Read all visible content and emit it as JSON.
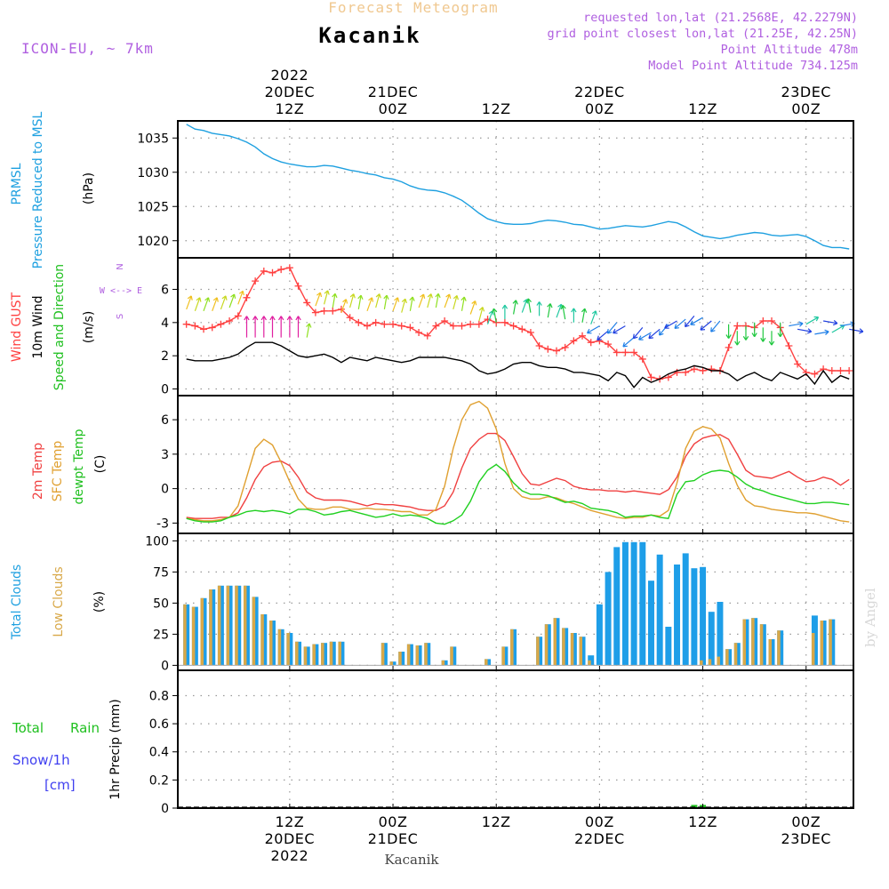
{
  "header": {
    "title": "Forecast Meteogram",
    "location": "Kacanik",
    "model": "ICON-EU, ~ 7km",
    "info_lines": [
      "requested lon,lat (21.2568E, 42.2279N)",
      "grid point closest lon,lat (21.25E, 42.25N)",
      "Point Altitude 478m",
      "Model Point Altitude 734.125m"
    ],
    "credit": "by Angel",
    "footer_location": "Kacanik"
  },
  "colors": {
    "title": "#f0c890",
    "info": "#b060e0",
    "pressure": "#1ea0e0",
    "gust": "#ff4040",
    "wind": "#000000",
    "wind_arrows": "#20c020",
    "temp2m": "#f04040",
    "sfc_temp": "#e0a030",
    "dewpoint": "#20d020",
    "total_clouds": "#1e9ee8",
    "low_clouds": "#d8a848",
    "rain": "#20c020",
    "snow": "#4040f0",
    "grid": "#999999"
  },
  "time_axis": {
    "top_labels": [
      {
        "t": 12,
        "lines": [
          "2022",
          "20DEC",
          "12Z"
        ]
      },
      {
        "t": 24,
        "lines": [
          "21DEC",
          "00Z"
        ]
      },
      {
        "t": 36,
        "lines": [
          "12Z"
        ]
      },
      {
        "t": 48,
        "lines": [
          "22DEC",
          "00Z"
        ]
      },
      {
        "t": 60,
        "lines": [
          "12Z"
        ]
      },
      {
        "t": 72,
        "lines": [
          "23DEC",
          "00Z"
        ]
      }
    ],
    "bottom_labels": [
      {
        "t": 12,
        "lines": [
          "12Z",
          "20DEC",
          "2022"
        ]
      },
      {
        "t": 24,
        "lines": [
          "00Z",
          "21DEC"
        ]
      },
      {
        "t": 36,
        "lines": [
          "12Z"
        ]
      },
      {
        "t": 48,
        "lines": [
          "00Z",
          "22DEC"
        ]
      },
      {
        "t": 60,
        "lines": [
          "12Z"
        ]
      },
      {
        "t": 72,
        "lines": [
          "00Z",
          "23DEC"
        ]
      }
    ]
  },
  "chart_data": [
    {
      "type": "line",
      "panel": "pressure",
      "ylabels": [
        "PRMSL",
        "Pressure Reduced to MSL",
        "(hPa)"
      ],
      "yticks": [
        1020,
        1025,
        1030,
        1035
      ],
      "ylim": [
        1017.5,
        1037.5
      ],
      "x_hours": [
        0,
        1,
        2,
        3,
        4,
        5,
        6,
        7,
        8,
        9,
        10,
        11,
        12,
        13,
        14,
        15,
        16,
        17,
        18,
        19,
        20,
        21,
        22,
        23,
        24,
        25,
        26,
        27,
        28,
        29,
        30,
        31,
        32,
        33,
        34,
        35,
        36,
        37,
        38,
        39,
        40,
        41,
        42,
        43,
        44,
        45,
        46,
        47,
        48,
        49,
        50,
        51,
        52,
        53,
        54,
        55,
        56,
        57,
        58,
        59,
        60,
        61,
        62,
        63,
        64,
        65,
        66,
        67,
        68,
        69,
        70,
        71,
        72,
        73,
        74,
        75,
        76,
        77
      ],
      "series": [
        {
          "values": [
            1037,
            1036.3,
            1036.1,
            1035.7,
            1035.5,
            1035.3,
            1034.9,
            1034.4,
            1033.7,
            1032.7,
            1032.0,
            1031.5,
            1031.2,
            1031.0,
            1030.8,
            1030.8,
            1031.0,
            1030.9,
            1030.6,
            1030.3,
            1030.1,
            1029.8,
            1029.6,
            1029.2,
            1029.0,
            1028.6,
            1028.0,
            1027.6,
            1027.4,
            1027.3,
            1027.0,
            1026.5,
            1025.9,
            1025.0,
            1024.0,
            1023.2,
            1022.8,
            1022.5,
            1022.4,
            1022.4,
            1022.5,
            1022.8,
            1023.0,
            1022.9,
            1022.7,
            1022.4,
            1022.3,
            1022.0,
            1021.7,
            1021.8,
            1022.0,
            1022.2,
            1022.1,
            1022.0,
            1022.2,
            1022.5,
            1022.8,
            1022.6,
            1022.0,
            1021.3,
            1020.7,
            1020.5,
            1020.3,
            1020.5,
            1020.8,
            1021.0,
            1021.2,
            1021.1,
            1020.8,
            1020.7,
            1020.8,
            1020.9,
            1020.6,
            1020.0,
            1019.3,
            1019.0,
            1019.0,
            1018.8
          ]
        }
      ]
    },
    {
      "type": "line",
      "panel": "wind",
      "ylabels": [
        "Wind GUST",
        "10m Wind",
        "Speed and Direction",
        "(m/s)"
      ],
      "compass": [
        "N",
        "W <--> E",
        "S"
      ],
      "yticks": [
        0,
        2,
        4,
        6
      ],
      "ylim": [
        -0.4,
        7.9
      ],
      "x_hours": [
        0,
        1,
        2,
        3,
        4,
        5,
        6,
        7,
        8,
        9,
        10,
        11,
        12,
        13,
        14,
        15,
        16,
        17,
        18,
        19,
        20,
        21,
        22,
        23,
        24,
        25,
        26,
        27,
        28,
        29,
        30,
        31,
        32,
        33,
        34,
        35,
        36,
        37,
        38,
        39,
        40,
        41,
        42,
        43,
        44,
        45,
        46,
        47,
        48,
        49,
        50,
        51,
        52,
        53,
        54,
        55,
        56,
        57,
        58,
        59,
        60,
        61,
        62,
        63,
        64,
        65,
        66,
        67,
        68,
        69,
        70,
        71,
        72,
        73,
        74,
        75,
        76,
        77
      ],
      "series": [
        {
          "name": "Wind GUST",
          "values": [
            3.9,
            3.8,
            3.6,
            3.7,
            3.9,
            4.1,
            4.4,
            5.5,
            6.5,
            7.1,
            7.0,
            7.2,
            7.3,
            6.2,
            5.2,
            4.6,
            4.7,
            4.7,
            4.8,
            4.3,
            4.0,
            3.8,
            4.0,
            3.9,
            3.9,
            3.8,
            3.7,
            3.4,
            3.2,
            3.8,
            4.1,
            3.8,
            3.8,
            3.9,
            3.9,
            4.2,
            4.0,
            4.0,
            3.8,
            3.6,
            3.4,
            2.6,
            2.4,
            2.3,
            2.5,
            2.9,
            3.2,
            2.8,
            2.9,
            2.7,
            2.2,
            2.2,
            2.2,
            1.8,
            0.7,
            0.6,
            0.7,
            1.0,
            1.0,
            1.2,
            1.1,
            1.2,
            1.1,
            2.5,
            3.8,
            3.8,
            3.7,
            4.1,
            4.1,
            3.7,
            2.6,
            1.5,
            1.0,
            0.9,
            1.2,
            1.1,
            1.1,
            1.1
          ]
        },
        {
          "name": "10m Wind",
          "values": [
            1.8,
            1.7,
            1.7,
            1.7,
            1.8,
            1.9,
            2.1,
            2.5,
            2.8,
            2.8,
            2.8,
            2.6,
            2.3,
            2.0,
            1.9,
            2.0,
            2.1,
            1.9,
            1.6,
            1.9,
            1.8,
            1.7,
            1.9,
            1.8,
            1.7,
            1.6,
            1.7,
            1.9,
            1.9,
            1.9,
            1.9,
            1.8,
            1.7,
            1.5,
            1.1,
            0.9,
            1.0,
            1.2,
            1.5,
            1.6,
            1.6,
            1.4,
            1.3,
            1.3,
            1.2,
            1.0,
            1.0,
            0.9,
            0.8,
            0.5,
            1.0,
            0.8,
            0.1,
            0.7,
            0.4,
            0.6,
            0.9,
            1.1,
            1.2,
            1.4,
            1.3,
            1.1,
            1.1,
            0.9,
            0.5,
            0.8,
            1.0,
            0.7,
            0.5,
            1.0,
            0.8,
            0.6,
            0.9,
            0.3,
            1.1,
            0.4,
            0.8,
            0.6
          ]
        }
      ]
    },
    {
      "type": "line",
      "panel": "temperature",
      "ylabels": [
        "2m Temp",
        "SFC Temp",
        "dewpt Temp",
        "(C)"
      ],
      "yticks": [
        -3,
        0,
        3,
        6
      ],
      "ylim": [
        -3.9,
        8.1
      ],
      "x_hours": [
        0,
        1,
        2,
        3,
        4,
        5,
        6,
        7,
        8,
        9,
        10,
        11,
        12,
        13,
        14,
        15,
        16,
        17,
        18,
        19,
        20,
        21,
        22,
        23,
        24,
        25,
        26,
        27,
        28,
        29,
        30,
        31,
        32,
        33,
        34,
        35,
        36,
        37,
        38,
        39,
        40,
        41,
        42,
        43,
        44,
        45,
        46,
        47,
        48,
        49,
        50,
        51,
        52,
        53,
        54,
        55,
        56,
        57,
        58,
        59,
        60,
        61,
        62,
        63,
        64,
        65,
        66,
        67,
        68,
        69,
        70,
        71,
        72,
        73,
        74,
        75,
        76,
        77
      ],
      "series": [
        {
          "name": "2m Temp",
          "values": [
            -2.5,
            -2.6,
            -2.6,
            -2.6,
            -2.5,
            -2.5,
            -2.1,
            -0.8,
            0.8,
            1.9,
            2.3,
            2.4,
            2.0,
            1.0,
            -0.3,
            -0.8,
            -1.0,
            -1.0,
            -1.0,
            -1.1,
            -1.3,
            -1.5,
            -1.3,
            -1.4,
            -1.4,
            -1.5,
            -1.6,
            -1.8,
            -1.9,
            -1.9,
            -1.5,
            -0.3,
            1.8,
            3.5,
            4.3,
            4.8,
            4.8,
            4.2,
            2.8,
            1.3,
            0.4,
            0.3,
            0.6,
            0.9,
            0.7,
            0.2,
            0.0,
            -0.1,
            -0.1,
            -0.2,
            -0.2,
            -0.3,
            -0.2,
            -0.3,
            -0.4,
            -0.5,
            -0.1,
            1.0,
            2.8,
            3.9,
            4.4,
            4.6,
            4.7,
            4.3,
            3.0,
            1.6,
            1.1,
            1.0,
            0.9,
            1.2,
            1.5,
            1.0,
            0.6,
            0.7,
            1.0,
            0.8,
            0.3,
            0.8
          ]
        },
        {
          "name": "SFC Temp",
          "values": [
            -2.6,
            -2.7,
            -2.8,
            -2.8,
            -2.7,
            -2.5,
            -1.5,
            1.0,
            3.5,
            4.3,
            3.8,
            2.3,
            0.6,
            -0.9,
            -1.7,
            -1.8,
            -1.8,
            -1.6,
            -1.6,
            -1.8,
            -1.8,
            -1.7,
            -1.8,
            -1.8,
            -1.9,
            -2.0,
            -2.0,
            -2.3,
            -2.3,
            -1.8,
            0.2,
            3.5,
            6.0,
            7.3,
            7.6,
            7.0,
            5.2,
            2.2,
            0.0,
            -0.7,
            -0.9,
            -0.9,
            -0.7,
            -0.8,
            -1.1,
            -1.3,
            -1.6,
            -1.9,
            -2.1,
            -2.3,
            -2.5,
            -2.6,
            -2.5,
            -2.5,
            -2.3,
            -2.4,
            -1.9,
            0.5,
            3.5,
            5.0,
            5.4,
            5.2,
            4.4,
            2.2,
            0.3,
            -1.0,
            -1.5,
            -1.6,
            -1.8,
            -1.9,
            -2.0,
            -2.1,
            -2.1,
            -2.2,
            -2.4,
            -2.6,
            -2.8,
            -2.9
          ]
        },
        {
          "name": "dewpt Temp",
          "values": [
            -2.6,
            -2.8,
            -2.9,
            -2.9,
            -2.8,
            -2.5,
            -2.3,
            -2.0,
            -1.9,
            -2.0,
            -1.9,
            -2.0,
            -2.2,
            -1.8,
            -1.8,
            -2.0,
            -2.3,
            -2.2,
            -2.0,
            -1.9,
            -2.1,
            -2.3,
            -2.5,
            -2.4,
            -2.2,
            -2.4,
            -2.3,
            -2.4,
            -2.6,
            -3.0,
            -3.1,
            -2.8,
            -2.3,
            -1.1,
            0.6,
            1.6,
            2.1,
            1.5,
            0.5,
            -0.2,
            -0.5,
            -0.5,
            -0.6,
            -0.9,
            -1.2,
            -1.1,
            -1.3,
            -1.7,
            -1.8,
            -1.9,
            -2.1,
            -2.5,
            -2.4,
            -2.4,
            -2.3,
            -2.5,
            -2.6,
            -0.5,
            0.6,
            0.7,
            1.2,
            1.5,
            1.6,
            1.5,
            1.0,
            0.4,
            0.0,
            -0.2,
            -0.5,
            -0.7,
            -0.9,
            -1.1,
            -1.3,
            -1.3,
            -1.2,
            -1.2,
            -1.3,
            -1.4
          ]
        }
      ]
    },
    {
      "type": "bar",
      "panel": "clouds",
      "ylabels": [
        "Total Clouds",
        "Low Clouds",
        "(%)"
      ],
      "yticks": [
        0,
        25,
        50,
        75,
        100
      ],
      "ylim": [
        -4,
        106
      ],
      "x_hours": [
        0,
        1,
        2,
        3,
        4,
        5,
        6,
        7,
        8,
        9,
        10,
        11,
        12,
        13,
        14,
        15,
        16,
        17,
        18,
        19,
        20,
        21,
        22,
        23,
        24,
        25,
        26,
        27,
        28,
        29,
        30,
        31,
        32,
        33,
        34,
        35,
        36,
        37,
        38,
        39,
        40,
        41,
        42,
        43,
        44,
        45,
        46,
        47,
        48,
        49,
        50,
        51,
        52,
        53,
        54,
        55,
        56,
        57,
        58,
        59,
        60,
        61,
        62,
        63,
        64,
        65,
        66,
        67,
        68,
        69,
        70,
        71,
        72,
        73,
        74,
        75,
        76,
        77
      ],
      "series": [
        {
          "name": "Total Clouds",
          "values": [
            49,
            47,
            54,
            61,
            64,
            64,
            64,
            64,
            55,
            41,
            36,
            29,
            26,
            19,
            15,
            17,
            18,
            19,
            19,
            0,
            0,
            0,
            0,
            18,
            3,
            11,
            17,
            16,
            18,
            0,
            4,
            15,
            0,
            0,
            0,
            5,
            0,
            15,
            29,
            0,
            0,
            23,
            33,
            38,
            30,
            26,
            23,
            8,
            49,
            75,
            95,
            99,
            99,
            99,
            68,
            89,
            31,
            81,
            90,
            78,
            79,
            43,
            51,
            13,
            18,
            37,
            38,
            33,
            21,
            28,
            0,
            0,
            0,
            40,
            36,
            37,
            0,
            0
          ]
        },
        {
          "name": "Low Clouds",
          "values": [
            49,
            47,
            54,
            61,
            64,
            64,
            64,
            64,
            55,
            41,
            36,
            29,
            26,
            19,
            15,
            17,
            18,
            19,
            19,
            0,
            0,
            0,
            0,
            18,
            3,
            11,
            17,
            16,
            18,
            0,
            4,
            15,
            0,
            0,
            0,
            5,
            0,
            15,
            29,
            0,
            0,
            23,
            33,
            38,
            30,
            26,
            23,
            4,
            0,
            0,
            0,
            0,
            0,
            0,
            0,
            0,
            0,
            0,
            0,
            0,
            4,
            5,
            7,
            13,
            18,
            37,
            38,
            33,
            21,
            28,
            0,
            0,
            0,
            26,
            36,
            37,
            0,
            0
          ]
        }
      ]
    },
    {
      "type": "bar",
      "panel": "precipitation",
      "ylabels": [
        "1hr Precip (mm)"
      ],
      "legend": [
        "Total",
        "Rain",
        "Snow/1h",
        "[cm]"
      ],
      "yticks": [
        0,
        0.2,
        0.4,
        0.6,
        0.8
      ],
      "ylim": [
        0,
        0.98
      ],
      "x_hours": [
        59,
        60
      ],
      "series": [
        {
          "name": "Rain",
          "values": [
            0.01,
            0.01
          ]
        }
      ]
    }
  ]
}
